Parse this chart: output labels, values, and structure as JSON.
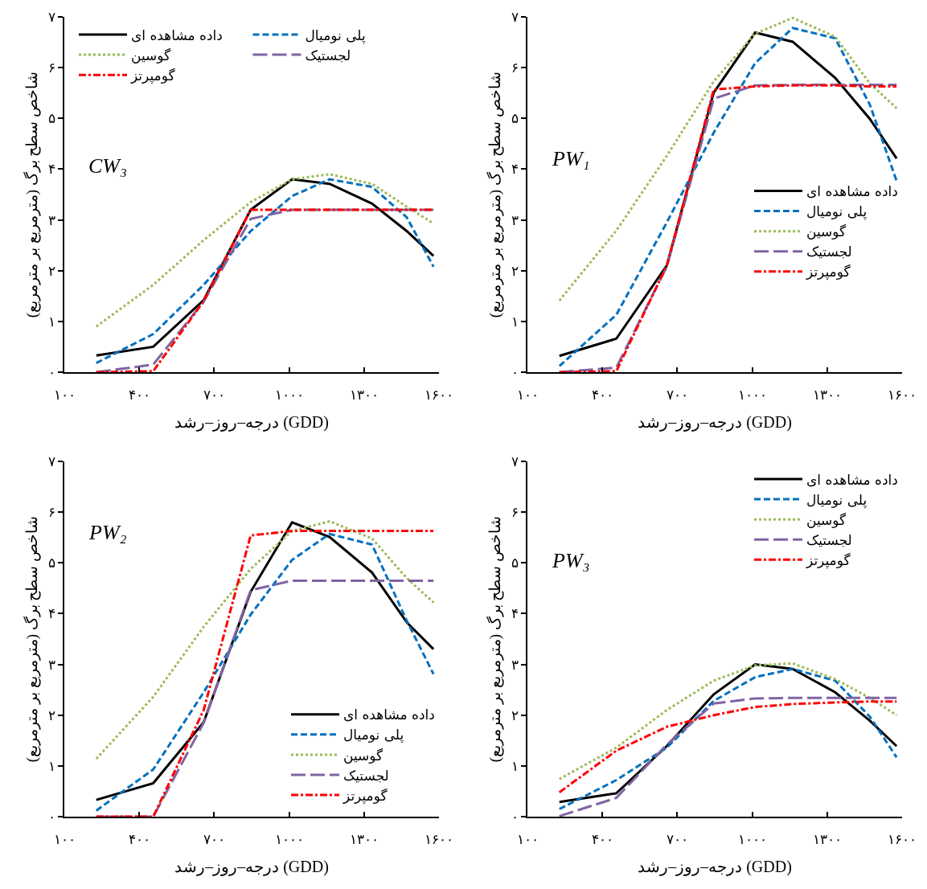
{
  "chart_data": [
    {
      "type": "line",
      "annotations": [
        "CW₃"
      ],
      "ylabel": "شاخص سطح برگ (مترمربع بر مترمربع)",
      "xlabel": "درجه–روز–رشد (GDD)",
      "legend": "top",
      "grid": false,
      "marker": "none",
      "xlim": [
        100,
        1600
      ],
      "xticks": [
        {
          "value": 100,
          "label": "۱۰۰"
        },
        {
          "value": 400,
          "label": "۴۰۰"
        },
        {
          "value": 700,
          "label": "۷۰۰"
        },
        {
          "value": 1000,
          "label": "۱۰۰۰"
        },
        {
          "value": 1300,
          "label": "۱۳۰۰"
        },
        {
          "value": 1600,
          "label": "۱۶۰۰"
        }
      ],
      "ylim": [
        0,
        7
      ],
      "yticks": [
        {
          "value": 0,
          "label": "۰"
        },
        {
          "value": 1,
          "label": "۱"
        },
        {
          "value": 2,
          "label": "۲"
        },
        {
          "value": 3,
          "label": "۳"
        },
        {
          "value": 4,
          "label": "۴"
        },
        {
          "value": 5,
          "label": "۵"
        },
        {
          "value": 6,
          "label": "۶"
        },
        {
          "value": 7,
          "label": "۷"
        }
      ],
      "x": [
        228,
        456,
        658,
        846,
        1012,
        1162,
        1332,
        1471,
        1578
      ],
      "series": [
        {
          "name": "داده مشاهده ای",
          "color": "#000000",
          "line_style": "solid",
          "values": [
            0.33,
            0.5,
            1.42,
            3.2,
            3.8,
            3.71,
            3.32,
            2.78,
            2.29
          ]
        },
        {
          "name": "پلی نومیال",
          "color": "#0070c0",
          "line_style": "dashed",
          "values": [
            0.18,
            0.75,
            1.72,
            2.78,
            3.47,
            3.8,
            3.65,
            3.05,
            2.08
          ]
        },
        {
          "name": "گوسین",
          "color": "#9bbb59",
          "line_style": "dotted",
          "values": [
            0.9,
            1.72,
            2.6,
            3.35,
            3.8,
            3.9,
            3.71,
            3.26,
            2.93
          ]
        },
        {
          "name": "لجستیک",
          "color": "#8064a2",
          "line_style": "longdash",
          "values": [
            0,
            0.15,
            1.39,
            3.02,
            3.2,
            3.2,
            3.2,
            3.2,
            3.2
          ]
        },
        {
          "name": "گومپرتز",
          "color": "#ff0000",
          "line_style": "dashdot",
          "values": [
            0,
            0.02,
            1.4,
            3.2,
            3.2,
            3.2,
            3.2,
            3.2,
            3.2
          ]
        }
      ]
    },
    {
      "type": "line",
      "annotations": [
        "PW₁"
      ],
      "ylabel": "شاخص سطح برگ (مترمربع بر مترمربع)",
      "xlabel": "درجه–روز–رشد (GDD)",
      "legend": "right",
      "grid": false,
      "marker": "none",
      "xlim": [
        100,
        1600
      ],
      "xticks": [
        {
          "value": 100,
          "label": "۱۰۰"
        },
        {
          "value": 400,
          "label": "۴۰۰"
        },
        {
          "value": 700,
          "label": "۷۰۰"
        },
        {
          "value": 1000,
          "label": "۱۰۰۰"
        },
        {
          "value": 1300,
          "label": "۱۳۰۰"
        },
        {
          "value": 1600,
          "label": "۱۶۰۰"
        }
      ],
      "ylim": [
        0,
        7
      ],
      "yticks": [
        {
          "value": 0,
          "label": "۰"
        },
        {
          "value": 1,
          "label": "۱"
        },
        {
          "value": 2,
          "label": "۲"
        },
        {
          "value": 3,
          "label": "۳"
        },
        {
          "value": 4,
          "label": "۴"
        },
        {
          "value": 5,
          "label": "۵"
        },
        {
          "value": 6,
          "label": "۶"
        },
        {
          "value": 7,
          "label": "۷"
        }
      ],
      "x": [
        228,
        456,
        658,
        846,
        1012,
        1162,
        1332,
        1471,
        1578
      ],
      "series": [
        {
          "name": "داده مشاهده ای",
          "color": "#000000",
          "line_style": "solid",
          "values": [
            0.32,
            0.66,
            2.1,
            5.51,
            6.69,
            6.51,
            5.8,
            4.99,
            4.21
          ]
        },
        {
          "name": "پلی نومیال",
          "color": "#0070c0",
          "line_style": "dashed",
          "values": [
            0.12,
            1.13,
            2.95,
            4.72,
            6.09,
            6.78,
            6.58,
            5.27,
            3.77
          ]
        },
        {
          "name": "گوسین",
          "color": "#9bbb59",
          "line_style": "dotted",
          "values": [
            1.41,
            2.79,
            4.26,
            5.73,
            6.67,
            6.98,
            6.61,
            5.69,
            5.2
          ]
        },
        {
          "name": "لجستیک",
          "color": "#8064a2",
          "line_style": "longdash",
          "values": [
            0,
            0.09,
            2.08,
            5.39,
            5.65,
            5.66,
            5.66,
            5.66,
            5.66
          ]
        },
        {
          "name": "گومپرتز",
          "color": "#ff0000",
          "line_style": "dashdot",
          "values": [
            0,
            0.02,
            2.1,
            5.57,
            5.63,
            5.65,
            5.65,
            5.63,
            5.63
          ]
        }
      ]
    },
    {
      "type": "line",
      "annotations": [
        "PW₂"
      ],
      "ylabel": "شاخص سطح برگ (مترمربع بر مترمربع)",
      "xlabel": "درجه–روز–رشد (GDD)",
      "legend": "bottom right",
      "grid": false,
      "marker": "none",
      "xlim": [
        100,
        1600
      ],
      "xticks": [
        {
          "value": 100,
          "label": "۱۰۰"
        },
        {
          "value": 400,
          "label": "۴۰۰"
        },
        {
          "value": 700,
          "label": "۷۰۰"
        },
        {
          "value": 1000,
          "label": "۱۰۰۰"
        },
        {
          "value": 1300,
          "label": "۱۳۰۰"
        },
        {
          "value": 1600,
          "label": "۱۶۰۰"
        }
      ],
      "ylim": [
        0,
        7
      ],
      "yticks": [
        {
          "value": 0,
          "label": "۰"
        },
        {
          "value": 1,
          "label": "۱"
        },
        {
          "value": 2,
          "label": "۲"
        },
        {
          "value": 3,
          "label": "۳"
        },
        {
          "value": 4,
          "label": "۴"
        },
        {
          "value": 5,
          "label": "۵"
        },
        {
          "value": 6,
          "label": "۶"
        },
        {
          "value": 7,
          "label": "۷"
        }
      ],
      "x": [
        228,
        456,
        658,
        846,
        1012,
        1162,
        1332,
        1471,
        1578
      ],
      "series": [
        {
          "name": "داده مشاهده ای",
          "color": "#000000",
          "line_style": "solid",
          "values": [
            0.33,
            0.66,
            1.86,
            4.43,
            5.8,
            5.51,
            4.81,
            3.83,
            3.3
          ]
        },
        {
          "name": "پلی نومیال",
          "color": "#0070c0",
          "line_style": "dashed",
          "values": [
            0.12,
            0.93,
            2.45,
            3.98,
            5.06,
            5.57,
            5.36,
            3.86,
            2.81
          ]
        },
        {
          "name": "گوسین",
          "color": "#9bbb59",
          "line_style": "dotted",
          "values": [
            1.14,
            2.36,
            3.74,
            4.88,
            5.63,
            5.82,
            5.48,
            4.7,
            4.22
          ]
        },
        {
          "name": "لجستیک",
          "color": "#8064a2",
          "line_style": "longdash",
          "values": [
            0,
            0,
            1.85,
            4.46,
            4.65,
            4.65,
            4.65,
            4.65,
            4.65
          ]
        },
        {
          "name": "گومپرتز",
          "color": "#ff0000",
          "line_style": "dashdot",
          "values": [
            0,
            0,
            2.1,
            5.54,
            5.63,
            5.63,
            5.63,
            5.63,
            5.63
          ]
        }
      ]
    },
    {
      "type": "line",
      "annotations": [
        "PW₃"
      ],
      "ylabel": "شاخص سطح برگ (مترمربع بر مترمربع)",
      "xlabel": "درجه–روز–رشد (GDD)",
      "legend": "top right",
      "grid": false,
      "marker": "none",
      "xlim": [
        100,
        1600
      ],
      "xticks": [
        {
          "value": 100,
          "label": "۱۰۰"
        },
        {
          "value": 400,
          "label": "۴۰۰"
        },
        {
          "value": 700,
          "label": "۷۰۰"
        },
        {
          "value": 1000,
          "label": "۱۰۰۰"
        },
        {
          "value": 1300,
          "label": "۱۳۰۰"
        },
        {
          "value": 1600,
          "label": "۱۶۰۰"
        }
      ],
      "ylim": [
        0,
        7
      ],
      "yticks": [
        {
          "value": 0,
          "label": "۰"
        },
        {
          "value": 1,
          "label": "۱"
        },
        {
          "value": 2,
          "label": "۲"
        },
        {
          "value": 3,
          "label": "۳"
        },
        {
          "value": 4,
          "label": "۴"
        },
        {
          "value": 5,
          "label": "۵"
        },
        {
          "value": 6,
          "label": "۶"
        },
        {
          "value": 7,
          "label": "۷"
        }
      ],
      "x": [
        228,
        456,
        658,
        846,
        1012,
        1162,
        1332,
        1471,
        1578
      ],
      "series": [
        {
          "name": "داده مشاهده ای",
          "color": "#000000",
          "line_style": "solid",
          "values": [
            0.29,
            0.46,
            1.39,
            2.41,
            3.0,
            2.91,
            2.45,
            1.89,
            1.39
          ]
        },
        {
          "name": "پلی نومیال",
          "color": "#0070c0",
          "line_style": "dashed",
          "values": [
            0.15,
            0.72,
            1.36,
            2.28,
            2.75,
            2.91,
            2.68,
            1.97,
            1.17
          ]
        },
        {
          "name": "گوسین",
          "color": "#9bbb59",
          "line_style": "dotted",
          "values": [
            0.74,
            1.36,
            2.1,
            2.68,
            2.98,
            3.02,
            2.71,
            2.34,
            2.0
          ]
        },
        {
          "name": "لجستیک",
          "color": "#8064a2",
          "line_style": "longdash",
          "values": [
            0.01,
            0.37,
            1.42,
            2.23,
            2.33,
            2.34,
            2.34,
            2.34,
            2.34
          ]
        },
        {
          "name": "گومپرتز",
          "color": "#ff0000",
          "line_style": "dashdot",
          "values": [
            0.48,
            1.3,
            1.77,
            2.0,
            2.16,
            2.22,
            2.25,
            2.27,
            2.27
          ]
        }
      ]
    }
  ]
}
